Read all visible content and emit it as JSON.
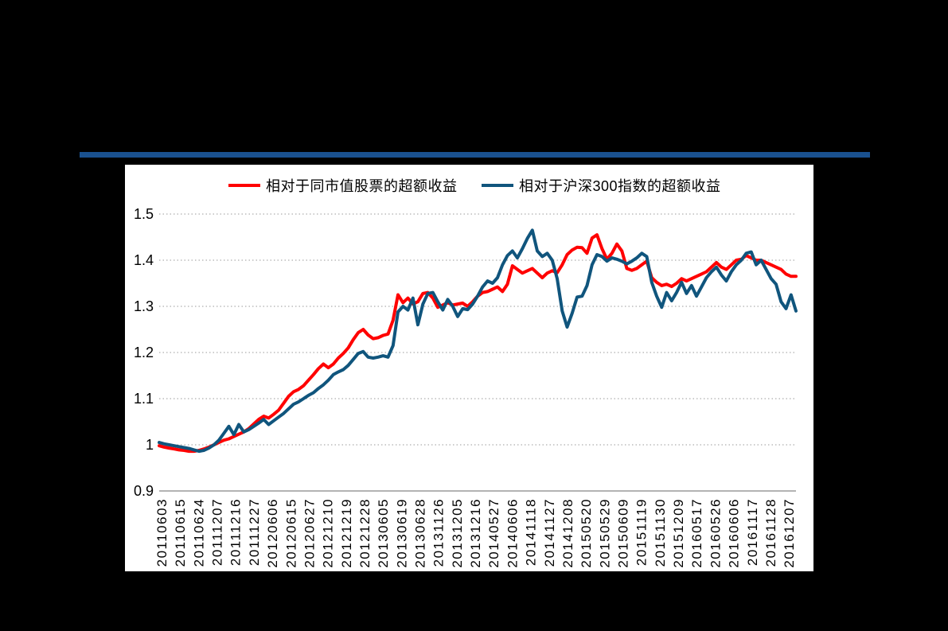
{
  "page": {
    "background_color": "#000000",
    "panel_color": "#ffffff",
    "top_rule_color": "#1a518f"
  },
  "legend": {
    "items": [
      {
        "label": "相对于同市值股票的超额收益",
        "color": "#ff0000"
      },
      {
        "label": "相对于沪深300指数的超额收益",
        "color": "#10557d"
      }
    ]
  },
  "chart_data": {
    "type": "line",
    "title": "",
    "xlabel": "",
    "ylabel": "",
    "ylim": [
      0.9,
      1.5
    ],
    "yticks": [
      "1.5",
      "1.4",
      "1.3",
      "1.2",
      "1.1",
      "1",
      "0.9"
    ],
    "grid": "horizontal dotted gridlines, solid light-gray baseline at 0.9",
    "legend_position": "top",
    "x_labels": [
      "20110603",
      "20110615",
      "20110624",
      "20111207",
      "20111216",
      "20111227",
      "20120606",
      "20120615",
      "20120627",
      "20121210",
      "20121219",
      "20121228",
      "20130605",
      "20130619",
      "20130628",
      "20131126",
      "20131205",
      "20131216",
      "20140527",
      "20140606",
      "20141118",
      "20141127",
      "20141208",
      "20150520",
      "20150529",
      "20150609",
      "20151119",
      "20151130",
      "20151209",
      "20160517",
      "20160526",
      "20160606",
      "20161117",
      "20161128",
      "20161207"
    ],
    "sampling_note": "series values sampled at 129 evenly spaced points spanning the x axis from 20110603 to 20161207",
    "series": [
      {
        "name": "相对于同市值股票的超额收益",
        "color": "#ff0000",
        "values": [
          0.998,
          0.995,
          0.993,
          0.991,
          0.989,
          0.988,
          0.986,
          0.986,
          0.988,
          0.991,
          0.995,
          1.0,
          1.005,
          1.01,
          1.013,
          1.018,
          1.023,
          1.028,
          1.035,
          1.045,
          1.055,
          1.062,
          1.058,
          1.066,
          1.075,
          1.09,
          1.105,
          1.115,
          1.12,
          1.128,
          1.14,
          1.152,
          1.165,
          1.175,
          1.167,
          1.175,
          1.188,
          1.198,
          1.21,
          1.228,
          1.243,
          1.25,
          1.238,
          1.23,
          1.232,
          1.237,
          1.24,
          1.27,
          1.325,
          1.308,
          1.318,
          1.305,
          1.31,
          1.328,
          1.33,
          1.318,
          1.298,
          1.303,
          1.308,
          1.303,
          1.305,
          1.307,
          1.3,
          1.31,
          1.322,
          1.33,
          1.332,
          1.337,
          1.342,
          1.332,
          1.348,
          1.388,
          1.38,
          1.372,
          1.377,
          1.382,
          1.372,
          1.362,
          1.372,
          1.377,
          1.373,
          1.39,
          1.412,
          1.422,
          1.428,
          1.427,
          1.415,
          1.448,
          1.455,
          1.425,
          1.402,
          1.415,
          1.435,
          1.42,
          1.382,
          1.378,
          1.382,
          1.39,
          1.398,
          1.362,
          1.352,
          1.345,
          1.348,
          1.343,
          1.35,
          1.36,
          1.355,
          1.36,
          1.365,
          1.37,
          1.375,
          1.385,
          1.395,
          1.385,
          1.38,
          1.39,
          1.4,
          1.402,
          1.41,
          1.405,
          1.4,
          1.4,
          1.395,
          1.39,
          1.385,
          1.38,
          1.37,
          1.365,
          1.365
        ]
      },
      {
        "name": "相对于沪深300指数的超额收益",
        "color": "#10557d",
        "values": [
          1.005,
          1.002,
          1.0,
          0.998,
          0.996,
          0.994,
          0.992,
          0.989,
          0.986,
          0.988,
          0.993,
          1.0,
          1.01,
          1.025,
          1.04,
          1.022,
          1.044,
          1.028,
          1.033,
          1.04,
          1.047,
          1.055,
          1.044,
          1.052,
          1.06,
          1.068,
          1.078,
          1.088,
          1.093,
          1.1,
          1.107,
          1.113,
          1.122,
          1.13,
          1.14,
          1.152,
          1.158,
          1.163,
          1.172,
          1.185,
          1.198,
          1.202,
          1.19,
          1.188,
          1.19,
          1.193,
          1.19,
          1.215,
          1.288,
          1.3,
          1.292,
          1.318,
          1.26,
          1.305,
          1.328,
          1.33,
          1.31,
          1.292,
          1.315,
          1.3,
          1.278,
          1.295,
          1.293,
          1.305,
          1.322,
          1.342,
          1.355,
          1.35,
          1.362,
          1.39,
          1.41,
          1.42,
          1.405,
          1.425,
          1.447,
          1.465,
          1.42,
          1.408,
          1.415,
          1.4,
          1.36,
          1.29,
          1.255,
          1.285,
          1.32,
          1.322,
          1.345,
          1.39,
          1.412,
          1.408,
          1.398,
          1.405,
          1.402,
          1.398,
          1.392,
          1.398,
          1.405,
          1.415,
          1.408,
          1.352,
          1.322,
          1.298,
          1.33,
          1.312,
          1.33,
          1.352,
          1.328,
          1.345,
          1.322,
          1.342,
          1.362,
          1.375,
          1.385,
          1.368,
          1.355,
          1.375,
          1.39,
          1.4,
          1.415,
          1.418,
          1.39,
          1.4,
          1.38,
          1.36,
          1.348,
          1.31,
          1.295,
          1.325,
          1.29
        ]
      }
    ]
  }
}
